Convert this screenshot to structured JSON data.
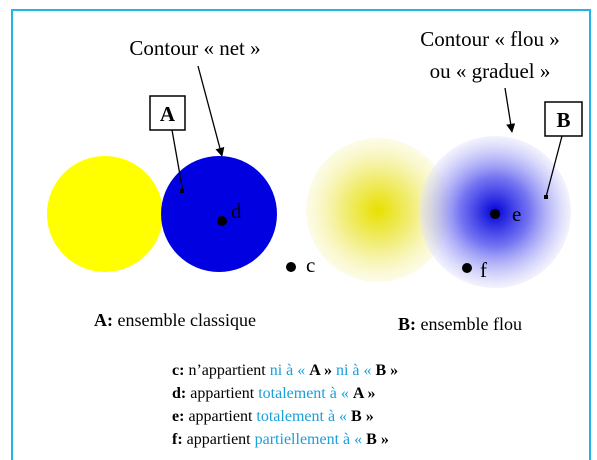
{
  "labels": {
    "crisp_contour": "Contour « net »",
    "fuzzy_contour_1": "Contour « flou »",
    "fuzzy_contour_2": "ou « graduel »"
  },
  "boxes": [
    "A",
    "B"
  ],
  "points": [
    "c",
    "d",
    "e",
    "f"
  ],
  "captions": [
    {
      "key": "A:",
      "text": "ensemble classique"
    },
    {
      "key": "B:",
      "text": "ensemble flou"
    }
  ],
  "legend": [
    {
      "key": "c:",
      "parts": [
        "n’appartient",
        "ni à «",
        "A »",
        "ni à «",
        "B »"
      ]
    },
    {
      "key": "d:",
      "parts": [
        "appartient",
        "totalement à «",
        "A »"
      ]
    },
    {
      "key": "e:",
      "parts": [
        "appartient",
        "totalement à «",
        "B »"
      ]
    },
    {
      "key": "f:",
      "parts": [
        "appartient",
        "partiellement à «",
        "B »"
      ]
    }
  ]
}
